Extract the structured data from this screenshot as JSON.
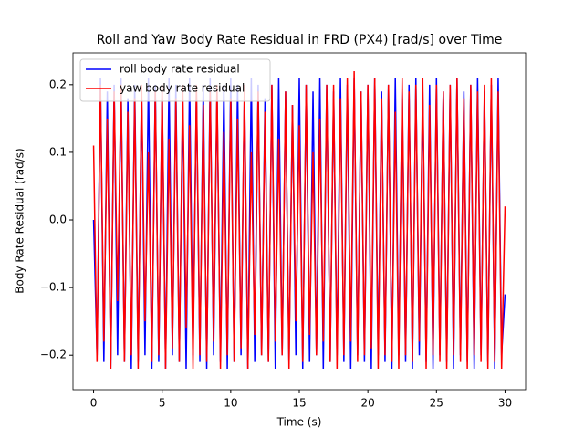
{
  "chart_data": {
    "type": "line",
    "title": "Roll and Yaw Body Rate Residual in FRD (PX4) [rad/s] over Time",
    "x_label": "Time (s)",
    "y_label": "Body Rate Residual (rad/s)",
    "x": [
      0,
      0.25,
      0.5,
      0.75,
      1,
      1.25,
      1.5,
      1.75,
      2,
      2.25,
      2.5,
      2.75,
      3,
      3.25,
      3.5,
      3.75,
      4,
      4.25,
      4.5,
      4.75,
      5,
      5.25,
      5.5,
      5.75,
      6,
      6.25,
      6.5,
      6.75,
      7,
      7.25,
      7.5,
      7.75,
      8,
      8.25,
      8.5,
      8.75,
      9,
      9.25,
      9.5,
      9.75,
      10,
      10.25,
      10.5,
      10.75,
      11,
      11.25,
      11.5,
      11.75,
      12,
      12.25,
      12.5,
      12.75,
      13,
      13.25,
      13.5,
      13.75,
      14,
      14.25,
      14.5,
      14.75,
      15,
      15.25,
      15.5,
      15.75,
      16,
      16.25,
      16.5,
      16.75,
      17,
      17.25,
      17.5,
      17.75,
      18,
      18.25,
      18.5,
      18.75,
      19,
      19.25,
      19.5,
      19.75,
      20,
      20.25,
      20.5,
      20.75,
      21,
      21.25,
      21.5,
      21.75,
      22,
      22.25,
      22.5,
      22.75,
      23,
      23.25,
      23.5,
      23.75,
      24,
      24.25,
      24.5,
      24.75,
      25,
      25.25,
      25.5,
      25.75,
      26,
      26.25,
      26.5,
      26.75,
      27,
      27.25,
      27.5,
      27.75,
      28,
      28.25,
      28.5,
      28.75,
      29,
      29.25,
      29.5,
      29.75,
      30
    ],
    "series": [
      {
        "name": "roll body rate residual",
        "color": "#0000ff",
        "values": [
          0.0,
          -0.2,
          0.21,
          -0.21,
          0.19,
          -0.22,
          0.2,
          -0.2,
          0.21,
          -0.21,
          0.18,
          -0.22,
          0.2,
          -0.21,
          0.19,
          -0.2,
          0.21,
          -0.22,
          0.2,
          -0.21,
          0.19,
          -0.22,
          0.21,
          -0.2,
          0.2,
          -0.21,
          0.18,
          -0.22,
          0.21,
          -0.2,
          0.19,
          -0.21,
          0.2,
          -0.22,
          0.21,
          -0.2,
          0.19,
          -0.21,
          0.2,
          -0.22,
          0.21,
          -0.21,
          0.2,
          -0.2,
          0.19,
          -0.22,
          0.21,
          -0.21,
          0.2,
          -0.2,
          0.18,
          -0.21,
          0.2,
          -0.22,
          0.21,
          -0.2,
          0.19,
          -0.21,
          0.17,
          -0.2,
          0.21,
          -0.22,
          0.2,
          -0.21,
          0.19,
          -0.2,
          0.21,
          -0.22,
          0.2,
          -0.21,
          0.19,
          -0.2,
          0.21,
          -0.21,
          0.2,
          -0.22,
          0.21,
          -0.2,
          0.19,
          -0.21,
          0.2,
          -0.22,
          0.21,
          -0.2,
          0.19,
          -0.21,
          0.2,
          -0.22,
          0.21,
          -0.2,
          0.19,
          -0.21,
          0.2,
          -0.22,
          0.21,
          -0.2,
          0.19,
          -0.21,
          0.2,
          -0.22,
          0.21,
          -0.2,
          0.19,
          -0.21,
          0.2,
          -0.22,
          0.21,
          -0.2,
          0.19,
          -0.21,
          0.2,
          -0.22,
          0.21,
          -0.2,
          0.19,
          -0.21,
          0.2,
          -0.22,
          0.21,
          -0.2,
          -0.11
        ]
      },
      {
        "name": "yaw body rate residual",
        "color": "#ff0000",
        "values": [
          0.11,
          -0.21,
          0.2,
          -0.18,
          0.15,
          -0.22,
          0.19,
          -0.12,
          0.2,
          -0.21,
          0.16,
          -0.2,
          0.18,
          -0.22,
          0.2,
          -0.15,
          0.1,
          -0.21,
          0.19,
          -0.2,
          0.2,
          -0.22,
          0.12,
          -0.19,
          0.18,
          -0.21,
          0.2,
          -0.16,
          0.14,
          -0.22,
          0.2,
          -0.2,
          0.17,
          -0.21,
          0.19,
          -0.18,
          0.2,
          -0.22,
          0.13,
          -0.2,
          0.18,
          -0.21,
          0.15,
          -0.19,
          0.2,
          -0.22,
          0.1,
          -0.17,
          0.19,
          -0.2,
          0.16,
          -0.21,
          0.2,
          -0.18,
          0.12,
          -0.2,
          0.19,
          -0.22,
          0.17,
          -0.15,
          0.14,
          -0.21,
          0.2,
          -0.17,
          0.1,
          -0.2,
          0.15,
          -0.18,
          0.2,
          -0.21,
          0.2,
          -0.22,
          0.18,
          -0.2,
          0.21,
          -0.18,
          0.22,
          -0.21,
          0.19,
          -0.2,
          0.2,
          -0.19,
          0.21,
          -0.22,
          0.18,
          -0.2,
          0.2,
          -0.21,
          0.16,
          -0.22,
          0.21,
          -0.2,
          0.19,
          -0.21,
          0.2,
          -0.18,
          0.21,
          -0.22,
          0.17,
          -0.2,
          0.2,
          -0.21,
          0.19,
          -0.22,
          0.2,
          -0.2,
          0.21,
          -0.21,
          0.18,
          -0.22,
          0.2,
          -0.2,
          0.19,
          -0.21,
          0.2,
          -0.22,
          0.21,
          -0.21,
          0.19,
          -0.22,
          0.02
        ]
      }
    ],
    "xlim": [
      -1.5,
      31.5
    ],
    "xticks": [
      0,
      5,
      10,
      15,
      20,
      25,
      30
    ],
    "ylim": [
      -0.251,
      0.247
    ],
    "yticks": [
      {
        "value": -0.2,
        "label": "−0.2"
      },
      {
        "value": -0.1,
        "label": "−0.1"
      },
      {
        "value": 0.0,
        "label": "0.0"
      },
      0.1,
      0.2
    ],
    "grid": false,
    "legend": "upper left"
  }
}
